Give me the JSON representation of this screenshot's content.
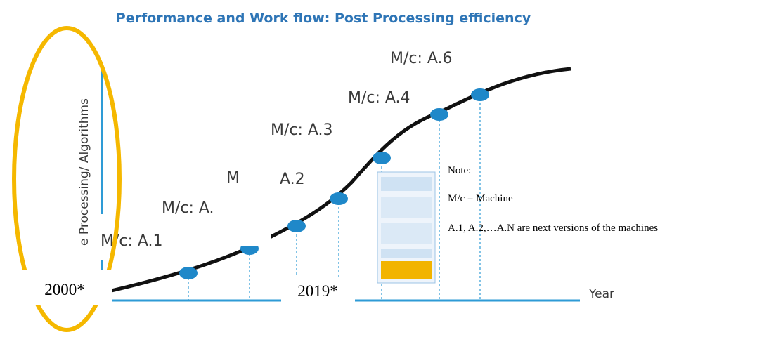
{
  "header": {
    "title": "Performance and Work flow: Post Processing efficiency"
  },
  "axes": {
    "y_label": "e Processing/ Algorithms",
    "x_label": "Year"
  },
  "machine_labels": [
    "M/c: A.1",
    "M/c: A.",
    "M",
    "A.2",
    "M/c: A.3",
    "M/c: A.4",
    "M/c: A.6"
  ],
  "year_boxes": [
    "2000*",
    "2019*"
  ],
  "note": {
    "heading": "Note:",
    "lines": [
      "M/c = Machine",
      "A.1, A.2,…A.N are next versions of the machines"
    ]
  }
}
